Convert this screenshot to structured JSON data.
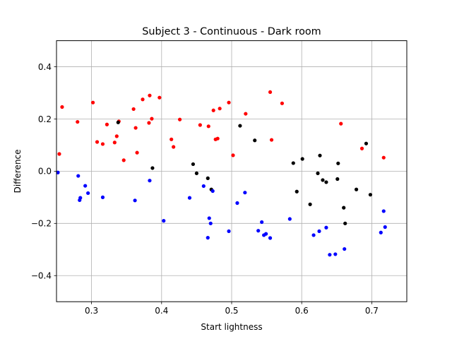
{
  "chart_data": {
    "type": "scatter",
    "title": "Subject 3 - Continuous - Dark room",
    "xlabel": "Start lightness",
    "ylabel": "Difference",
    "xlim": [
      0.25,
      0.75
    ],
    "ylim": [
      -0.5,
      0.5
    ],
    "xticks": [
      0.3,
      0.4,
      0.5,
      0.6,
      0.7
    ],
    "xtick_labels": [
      "0.3",
      "0.4",
      "0.5",
      "0.6",
      "0.7"
    ],
    "yticks": [
      -0.4,
      -0.2,
      0.0,
      0.2,
      0.4
    ],
    "ytick_labels": [
      "−0.4",
      "−0.2",
      "0.0",
      "0.2",
      "0.4"
    ],
    "grid": true,
    "series": [
      {
        "color": "#ff0000",
        "points": [
          [
            0.254,
            0.066
          ],
          [
            0.258,
            0.246
          ],
          [
            0.28,
            0.189
          ],
          [
            0.302,
            0.263
          ],
          [
            0.308,
            0.112
          ],
          [
            0.316,
            0.104
          ],
          [
            0.322,
            0.179
          ],
          [
            0.333,
            0.11
          ],
          [
            0.336,
            0.134
          ],
          [
            0.339,
            0.191
          ],
          [
            0.346,
            0.042
          ],
          [
            0.36,
            0.238
          ],
          [
            0.363,
            0.166
          ],
          [
            0.365,
            0.071
          ],
          [
            0.373,
            0.275
          ],
          [
            0.382,
            0.185
          ],
          [
            0.383,
            0.29
          ],
          [
            0.386,
            0.201
          ],
          [
            0.397,
            0.282
          ],
          [
            0.414,
            0.122
          ],
          [
            0.417,
            0.093
          ],
          [
            0.426,
            0.198
          ],
          [
            0.455,
            0.177
          ],
          [
            0.467,
            0.172
          ],
          [
            0.474,
            0.233
          ],
          [
            0.477,
            0.122
          ],
          [
            0.48,
            0.125
          ],
          [
            0.483,
            0.24
          ],
          [
            0.496,
            0.263
          ],
          [
            0.502,
            0.061
          ],
          [
            0.52,
            0.22
          ],
          [
            0.555,
            0.303
          ],
          [
            0.557,
            0.12
          ],
          [
            0.572,
            0.26
          ],
          [
            0.656,
            0.182
          ],
          [
            0.686,
            0.087
          ],
          [
            0.717,
            0.052
          ]
        ]
      },
      {
        "color": "#000000",
        "points": [
          [
            0.338,
            0.187
          ],
          [
            0.387,
            0.012
          ],
          [
            0.445,
            0.027
          ],
          [
            0.45,
            -0.008
          ],
          [
            0.466,
            -0.027
          ],
          [
            0.471,
            -0.07
          ],
          [
            0.512,
            0.174
          ],
          [
            0.533,
            0.118
          ],
          [
            0.588,
            0.031
          ],
          [
            0.593,
            -0.078
          ],
          [
            0.601,
            0.047
          ],
          [
            0.612,
            -0.127
          ],
          [
            0.623,
            -0.008
          ],
          [
            0.626,
            0.06
          ],
          [
            0.63,
            -0.034
          ],
          [
            0.635,
            -0.042
          ],
          [
            0.651,
            -0.03
          ],
          [
            0.652,
            0.03
          ],
          [
            0.66,
            -0.14
          ],
          [
            0.662,
            -0.2
          ],
          [
            0.678,
            -0.07
          ],
          [
            0.692,
            0.106
          ],
          [
            0.698,
            -0.09
          ]
        ]
      },
      {
        "color": "#0000ff",
        "points": [
          [
            0.252,
            -0.005
          ],
          [
            0.281,
            -0.018
          ],
          [
            0.283,
            -0.111
          ],
          [
            0.284,
            -0.102
          ],
          [
            0.291,
            -0.056
          ],
          [
            0.295,
            -0.084
          ],
          [
            0.316,
            -0.1
          ],
          [
            0.362,
            -0.112
          ],
          [
            0.383,
            -0.036
          ],
          [
            0.403,
            -0.19
          ],
          [
            0.44,
            -0.102
          ],
          [
            0.46,
            -0.057
          ],
          [
            0.466,
            -0.255
          ],
          [
            0.468,
            -0.18
          ],
          [
            0.47,
            -0.2
          ],
          [
            0.473,
            -0.076
          ],
          [
            0.496,
            -0.23
          ],
          [
            0.508,
            -0.122
          ],
          [
            0.519,
            -0.082
          ],
          [
            0.538,
            -0.228
          ],
          [
            0.543,
            -0.195
          ],
          [
            0.546,
            -0.245
          ],
          [
            0.549,
            -0.24
          ],
          [
            0.555,
            -0.256
          ],
          [
            0.583,
            -0.183
          ],
          [
            0.617,
            -0.245
          ],
          [
            0.625,
            -0.23
          ],
          [
            0.635,
            -0.216
          ],
          [
            0.64,
            -0.32
          ],
          [
            0.648,
            -0.318
          ],
          [
            0.661,
            -0.298
          ],
          [
            0.713,
            -0.235
          ],
          [
            0.717,
            -0.153
          ],
          [
            0.719,
            -0.214
          ]
        ]
      }
    ]
  }
}
